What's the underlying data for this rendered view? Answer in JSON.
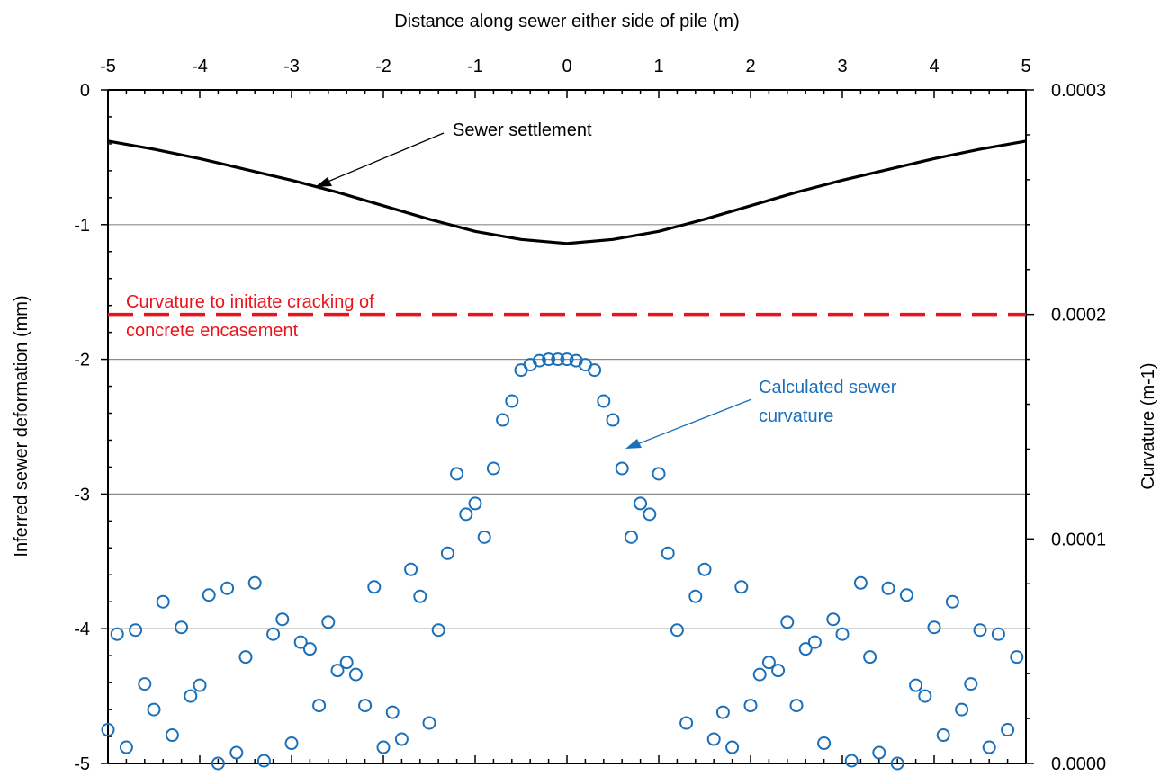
{
  "chart_data": {
    "type": "line",
    "title": "",
    "xlabel": "Distance along sewer either side of pile (m)",
    "ylabel": "Inferred sewer deformation  (mm)",
    "y2label": "Curvature  (m-1)",
    "xlim": [
      -5,
      5
    ],
    "ylim": [
      -5,
      0
    ],
    "y2lim": [
      0.0,
      0.0003
    ],
    "x_ticks": [
      "-5",
      "-4",
      "-3",
      "-2",
      "-1",
      "0",
      "1",
      "2",
      "3",
      "4",
      "5"
    ],
    "y_ticks": [
      "0",
      "-1",
      "-2",
      "-3",
      "-4",
      "-5"
    ],
    "y2_ticks": [
      "0.0003",
      "0.0002",
      "0.0001",
      "0.0000"
    ],
    "grid": "horizontal",
    "series": [
      {
        "name": "Sewer settlement",
        "axis": "left",
        "style": "line",
        "color": "#000000",
        "x": [
          -5,
          -4.5,
          -4,
          -3.5,
          -3,
          -2.5,
          -2,
          -1.5,
          -1,
          -0.5,
          0,
          0.5,
          1,
          1.5,
          2,
          2.5,
          3,
          3.5,
          4,
          4.5,
          5
        ],
        "y": [
          -0.38,
          -0.44,
          -0.51,
          -0.59,
          -0.67,
          -0.76,
          -0.86,
          -0.96,
          -1.05,
          -1.11,
          -1.14,
          -1.11,
          -1.05,
          -0.96,
          -0.86,
          -0.76,
          -0.67,
          -0.59,
          -0.51,
          -0.44,
          -0.38
        ]
      },
      {
        "name": "Curvature to initiate cracking of concrete encasement",
        "axis": "right",
        "style": "dashed",
        "color": "#e8141c",
        "x": [
          -5,
          5
        ],
        "y": [
          0.0002,
          0.0002
        ]
      },
      {
        "name": "Calculated sewer curvature",
        "axis": "left",
        "style": "markers",
        "color": "#1a6fba",
        "x": [
          -5.0,
          -4.9,
          -4.8,
          -4.7,
          -4.6,
          -4.5,
          -4.4,
          -4.3,
          -4.2,
          -4.1,
          -4.0,
          -3.9,
          -3.8,
          -3.7,
          -3.6,
          -3.5,
          -3.4,
          -3.3,
          -3.2,
          -3.1,
          -3.0,
          -2.9,
          -2.8,
          -2.7,
          -2.6,
          -2.5,
          -2.4,
          -2.3,
          -2.2,
          -2.1,
          -2.0,
          -1.9,
          -1.8,
          -1.7,
          -1.6,
          -1.5,
          -1.4,
          -1.3,
          -1.2,
          -1.1,
          -1.0,
          -0.9,
          -0.8,
          -0.7,
          -0.6,
          -0.5,
          -0.4,
          -0.3,
          -0.2,
          -0.1,
          0.0,
          0.1,
          0.2,
          0.3,
          0.4,
          0.5,
          0.6,
          0.7,
          0.8,
          0.9,
          1.0,
          1.1,
          1.2,
          1.3,
          1.4,
          1.5,
          1.6,
          1.7,
          1.8,
          1.9,
          2.0,
          2.1,
          2.2,
          2.3,
          2.4,
          2.5,
          2.6,
          2.7,
          2.8,
          2.9,
          3.0,
          3.1,
          3.2,
          3.3,
          3.4,
          3.5,
          3.6,
          3.7,
          3.8,
          3.9,
          4.0,
          4.1,
          4.2,
          4.3,
          4.4,
          4.5,
          4.6,
          4.7,
          4.8,
          4.9
        ],
        "y": [
          -4.75,
          -4.04,
          -4.88,
          -4.01,
          -4.41,
          -4.6,
          -3.8,
          -4.79,
          -3.99,
          -4.5,
          -4.42,
          -3.75,
          -5.0,
          -3.7,
          -4.92,
          -4.21,
          -3.66,
          -4.98,
          -4.04,
          -3.93,
          -4.85,
          -4.1,
          -4.15,
          -4.57,
          -3.95,
          -4.31,
          -4.25,
          -4.34,
          -4.57,
          -3.69,
          -4.88,
          -4.62,
          -4.82,
          -3.56,
          -3.76,
          -4.7,
          -4.01,
          -3.44,
          -2.85,
          -3.15,
          -3.07,
          -3.32,
          -2.81,
          -2.45,
          -2.31,
          -2.08,
          -2.04,
          -2.01,
          -2.0,
          -2.0,
          -2.0,
          -2.01,
          -2.04,
          -2.08,
          -2.31,
          -2.45,
          -2.81,
          -3.32,
          -3.07,
          -3.15,
          -2.85,
          -3.44,
          -4.01,
          -4.7,
          -3.76,
          -3.56,
          -4.82,
          -4.62,
          -4.88,
          -3.69,
          -4.57,
          -4.34,
          -4.25,
          -4.31,
          -3.95,
          -4.57,
          -4.15,
          -4.1,
          -4.85,
          -3.93,
          -4.04,
          -4.98,
          -3.66,
          -4.21,
          -4.92,
          -3.7,
          -5.0,
          -3.75,
          -4.42,
          -4.5,
          -3.99,
          -4.79,
          -3.8,
          -4.6,
          -4.41,
          -4.01,
          -4.88,
          -4.04,
          -4.75,
          -4.21
        ]
      }
    ],
    "annotations": {
      "settlement": "Sewer settlement",
      "cracking_line1": "Curvature to initiate cracking of",
      "cracking_line2": "concrete encasement",
      "curvature_line1": "Calculated sewer",
      "curvature_line2": "curvature"
    },
    "colors": {
      "settlement": "#000000",
      "cracking": "#e8141c",
      "curvature": "#1a6fba",
      "grid": "#8c8c8c"
    }
  }
}
